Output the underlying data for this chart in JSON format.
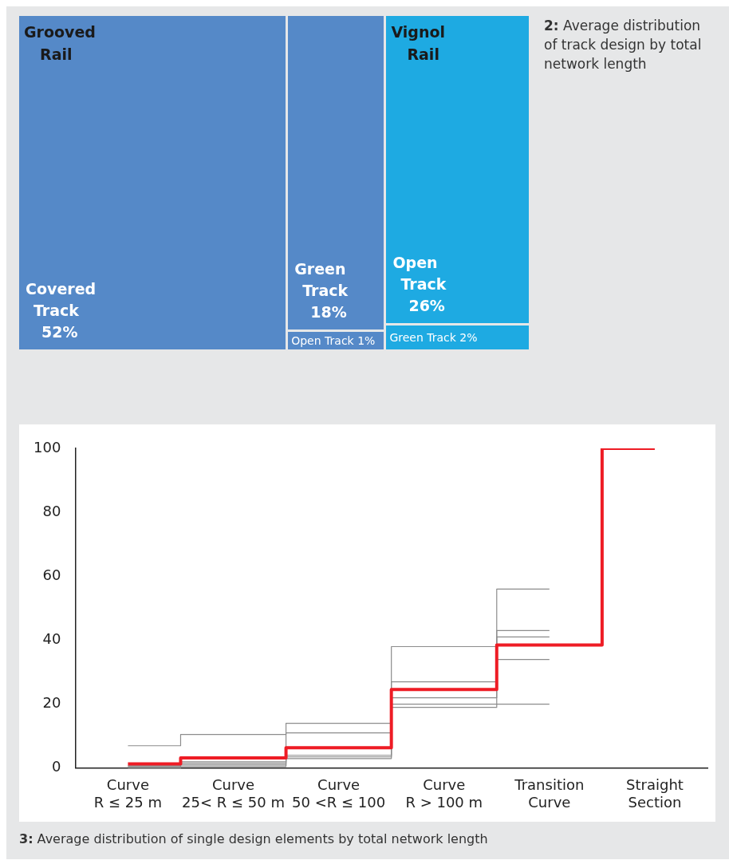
{
  "chart_data": [
    {
      "type": "other",
      "title": "2: Average distribution of track design by total network length",
      "categories": [
        "Covered Track",
        "Green Track",
        "Open Track",
        "Open Track",
        "Green Track"
      ],
      "series": [
        {
          "name": "Grooved Rail",
          "color": "#5589c8",
          "values": [
            52,
            18,
            1,
            null,
            null
          ],
          "value_labels": [
            "52%",
            "18%",
            "1%",
            null,
            null
          ]
        },
        {
          "name": "Vignol Rail",
          "color": "#1eaae2",
          "values": [
            null,
            null,
            null,
            26,
            2
          ],
          "value_labels": [
            null,
            null,
            null,
            "26%",
            "2%"
          ]
        }
      ]
    },
    {
      "type": "step",
      "title": "3: Average distribution of single design elements by total network length",
      "categories": [
        "Curve R ≤ 25 m",
        "Curve 25< R ≤ 50 m",
        "Curve 50 <R ≤ 100",
        "Curve R > 100 m",
        "Transition Curve",
        "Straight Section"
      ],
      "ylim": [
        0,
        100
      ],
      "yticks": [
        0,
        20,
        40,
        60,
        80,
        100
      ],
      "grid": false,
      "legend": false,
      "series": [
        {
          "color": "#8c8c8c",
          "values": [
            7,
            10.5,
            14,
            38,
            56,
            null
          ]
        },
        {
          "color": "#8c8c8c",
          "values": [
            0.8,
            2,
            11,
            27,
            43,
            null
          ]
        },
        {
          "color": "#8c8c8c",
          "values": [
            0.5,
            1.5,
            4,
            22,
            41,
            null
          ]
        },
        {
          "color": "#8c8c8c",
          "values": [
            0.3,
            1,
            3.5,
            20,
            34,
            null
          ]
        },
        {
          "color": "#8c8c8c",
          "values": [
            0.1,
            0.5,
            3,
            19,
            20,
            null
          ]
        },
        {
          "color": "#ee1c25",
          "values": [
            1.3,
            3.2,
            6.4,
            24.6,
            38.5,
            100
          ]
        }
      ]
    }
  ]
}
